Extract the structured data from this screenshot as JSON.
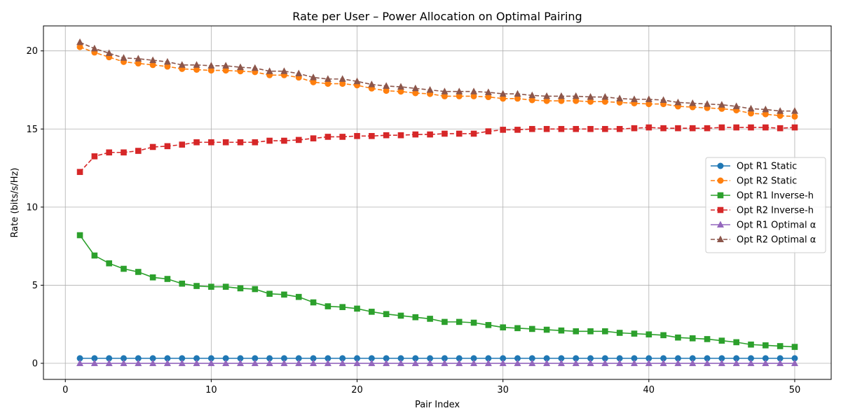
{
  "chart_data": {
    "type": "line",
    "title": "Rate per User – Power Allocation on Optimal Pairing",
    "xlabel": "Pair Index",
    "ylabel": "Rate (bits/s/Hz)",
    "xlim": [
      -1.5,
      52.5
    ],
    "ylim": [
      -1.03,
      21.6
    ],
    "xticks": [
      0,
      10,
      20,
      30,
      40,
      50
    ],
    "yticks": [
      0,
      5,
      10,
      15,
      20
    ],
    "grid": true,
    "legend_position": "right",
    "x": [
      1,
      2,
      3,
      4,
      5,
      6,
      7,
      8,
      9,
      10,
      11,
      12,
      13,
      14,
      15,
      16,
      17,
      18,
      19,
      20,
      21,
      22,
      23,
      24,
      25,
      26,
      27,
      28,
      29,
      30,
      31,
      32,
      33,
      34,
      35,
      36,
      37,
      38,
      39,
      40,
      41,
      42,
      43,
      44,
      45,
      46,
      47,
      48,
      49,
      50
    ],
    "series": [
      {
        "name": "Opt R1 Static",
        "color": "#1f77b4",
        "marker": "circle",
        "dash": "solid",
        "values": [
          0.32,
          0.32,
          0.32,
          0.32,
          0.32,
          0.32,
          0.32,
          0.32,
          0.32,
          0.32,
          0.32,
          0.32,
          0.32,
          0.32,
          0.32,
          0.32,
          0.32,
          0.32,
          0.32,
          0.32,
          0.32,
          0.32,
          0.32,
          0.32,
          0.32,
          0.32,
          0.32,
          0.32,
          0.32,
          0.32,
          0.32,
          0.32,
          0.32,
          0.32,
          0.32,
          0.32,
          0.32,
          0.32,
          0.32,
          0.32,
          0.32,
          0.32,
          0.32,
          0.32,
          0.32,
          0.32,
          0.32,
          0.32,
          0.32,
          0.32
        ]
      },
      {
        "name": "Opt R2 Static",
        "color": "#ff7f0e",
        "marker": "circle",
        "dash": "dashed",
        "values": [
          20.25,
          19.9,
          19.6,
          19.3,
          19.2,
          19.1,
          19.0,
          18.85,
          18.8,
          18.75,
          18.75,
          18.7,
          18.65,
          18.45,
          18.45,
          18.3,
          18.0,
          17.9,
          17.9,
          17.8,
          17.6,
          17.45,
          17.4,
          17.3,
          17.25,
          17.1,
          17.1,
          17.1,
          17.05,
          16.95,
          16.95,
          16.85,
          16.8,
          16.8,
          16.8,
          16.75,
          16.75,
          16.7,
          16.65,
          16.6,
          16.6,
          16.45,
          16.4,
          16.35,
          16.3,
          16.2,
          16.0,
          15.95,
          15.85,
          15.8
        ]
      },
      {
        "name": "Opt R1 Inverse-h",
        "color": "#2ca02c",
        "marker": "square",
        "dash": "solid",
        "values": [
          8.2,
          6.9,
          6.4,
          6.05,
          5.85,
          5.5,
          5.4,
          5.1,
          4.95,
          4.9,
          4.9,
          4.8,
          4.75,
          4.45,
          4.4,
          4.25,
          3.9,
          3.65,
          3.6,
          3.5,
          3.3,
          3.15,
          3.05,
          2.95,
          2.85,
          2.65,
          2.65,
          2.6,
          2.45,
          2.3,
          2.25,
          2.2,
          2.15,
          2.1,
          2.05,
          2.05,
          2.05,
          1.95,
          1.9,
          1.85,
          1.8,
          1.65,
          1.6,
          1.55,
          1.45,
          1.35,
          1.2,
          1.15,
          1.1,
          1.05
        ]
      },
      {
        "name": "Opt R2 Inverse-h",
        "color": "#d62728",
        "marker": "square",
        "dash": "dashed",
        "values": [
          12.25,
          13.25,
          13.5,
          13.5,
          13.6,
          13.85,
          13.9,
          14.0,
          14.15,
          14.15,
          14.15,
          14.15,
          14.15,
          14.25,
          14.25,
          14.3,
          14.4,
          14.5,
          14.5,
          14.55,
          14.55,
          14.6,
          14.6,
          14.65,
          14.65,
          14.7,
          14.7,
          14.7,
          14.85,
          14.95,
          14.95,
          15.0,
          15.0,
          15.0,
          15.0,
          15.0,
          15.0,
          15.0,
          15.05,
          15.1,
          15.05,
          15.05,
          15.05,
          15.05,
          15.1,
          15.1,
          15.1,
          15.1,
          15.05,
          15.1
        ]
      },
      {
        "name": "Opt R1 Optimal α",
        "color": "#9467bd",
        "marker": "triangle",
        "dash": "solid",
        "values": [
          0,
          0,
          0,
          0,
          0,
          0,
          0,
          0,
          0,
          0,
          0,
          0,
          0,
          0,
          0,
          0,
          0,
          0,
          0,
          0,
          0,
          0,
          0,
          0,
          0,
          0,
          0,
          0,
          0,
          0,
          0,
          0,
          0,
          0,
          0,
          0,
          0,
          0,
          0,
          0,
          0,
          0,
          0,
          0,
          0,
          0,
          0,
          0,
          0,
          0
        ]
      },
      {
        "name": "Opt R2 Optimal α",
        "color": "#8c564b",
        "marker": "triangle",
        "dash": "dashed",
        "values": [
          20.55,
          20.15,
          19.85,
          19.55,
          19.5,
          19.4,
          19.3,
          19.1,
          19.1,
          19.05,
          19.05,
          18.95,
          18.9,
          18.7,
          18.7,
          18.55,
          18.3,
          18.2,
          18.2,
          18.05,
          17.85,
          17.75,
          17.7,
          17.6,
          17.5,
          17.4,
          17.4,
          17.4,
          17.35,
          17.25,
          17.25,
          17.15,
          17.1,
          17.1,
          17.1,
          17.05,
          17.05,
          16.95,
          16.9,
          16.9,
          16.85,
          16.7,
          16.65,
          16.6,
          16.55,
          16.45,
          16.3,
          16.25,
          16.15,
          16.15
        ]
      }
    ]
  }
}
